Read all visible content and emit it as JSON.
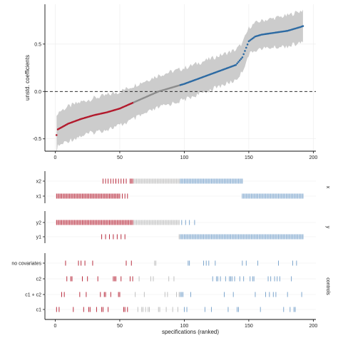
{
  "chart_data": [
    {
      "type": "scatter",
      "ylabel": "unstd. coefficients",
      "xlim": [
        -8,
        202
      ],
      "ylim": [
        -0.63,
        0.92
      ],
      "x_ticks": [
        "0",
        "50",
        "100",
        "150",
        "200"
      ],
      "y_ticks": [
        "-0.5",
        "0.0",
        "0.5"
      ],
      "reference_line": 0.0,
      "grid": true,
      "colors": {
        "negative": "#b2182b",
        "nonsignificant": "#8c8c8c",
        "positive": "#2c6aa3",
        "ci_band": "#cccccc"
      },
      "curve_knots": [
        [
          1,
          -0.46
        ],
        [
          2,
          -0.4
        ],
        [
          10,
          -0.34
        ],
        [
          20,
          -0.29
        ],
        [
          30,
          -0.25
        ],
        [
          40,
          -0.22
        ],
        [
          50,
          -0.18
        ],
        [
          60,
          -0.12
        ],
        [
          70,
          -0.06
        ],
        [
          80,
          0.0
        ],
        [
          90,
          0.04
        ],
        [
          100,
          0.08
        ],
        [
          110,
          0.13
        ],
        [
          120,
          0.18
        ],
        [
          130,
          0.23
        ],
        [
          140,
          0.28
        ],
        [
          145,
          0.36
        ],
        [
          150,
          0.53
        ],
        [
          155,
          0.58
        ],
        [
          160,
          0.6
        ],
        [
          170,
          0.62
        ],
        [
          180,
          0.64
        ],
        [
          190,
          0.68
        ],
        [
          192,
          0.69
        ]
      ],
      "ci_halfwidth": [
        [
          1,
          0.18
        ],
        [
          50,
          0.18
        ],
        [
          80,
          0.17
        ],
        [
          140,
          0.16
        ],
        [
          150,
          0.14
        ],
        [
          192,
          0.17
        ]
      ],
      "segments": {
        "negative_max_x": 60,
        "nonsignificant_max_x": 96
      }
    },
    {
      "type": "scatter",
      "panel": "x",
      "ylabel": "x",
      "categories": [
        "x2",
        "x1"
      ],
      "series": [
        {
          "category": "x2",
          "ranges": [
            [
              37,
              47,
              2
            ],
            [
              47,
              56,
              2
            ],
            [
              58,
              96,
              1
            ],
            [
              97,
              145,
              1
            ]
          ]
        },
        {
          "category": "x1",
          "ranges": [
            [
              1,
              49,
              1
            ],
            [
              50,
              56,
              2
            ],
            [
              145,
              192,
              1
            ]
          ]
        }
      ]
    },
    {
      "type": "scatter",
      "panel": "y",
      "ylabel": "y",
      "categories": [
        "y2",
        "y1"
      ],
      "series": [
        {
          "category": "y2",
          "ranges": [
            [
              1,
              60,
              1
            ],
            [
              61,
              96,
              1
            ],
            [
              98,
              106,
              3
            ],
            [
              108,
              108,
              1
            ]
          ]
        },
        {
          "category": "y1",
          "ranges": [
            [
              36,
              56,
              3
            ],
            [
              96,
              192,
              1
            ]
          ]
        }
      ]
    },
    {
      "type": "scatter",
      "panel": "controls",
      "ylabel": "controls",
      "categories": [
        "no covariates",
        "c2",
        "c1 + c2",
        "c1"
      ],
      "series": [
        {
          "category": "no covariates",
          "offset": 0
        },
        {
          "category": "c2",
          "offset": 1
        },
        {
          "category": "c1 + c2",
          "offset": 2
        },
        {
          "category": "c1",
          "offset": 3
        }
      ]
    }
  ],
  "shared_x": {
    "xlabel": "specifications (ranked)",
    "ticks": [
      "0",
      "50",
      "100",
      "150",
      "200"
    ]
  }
}
